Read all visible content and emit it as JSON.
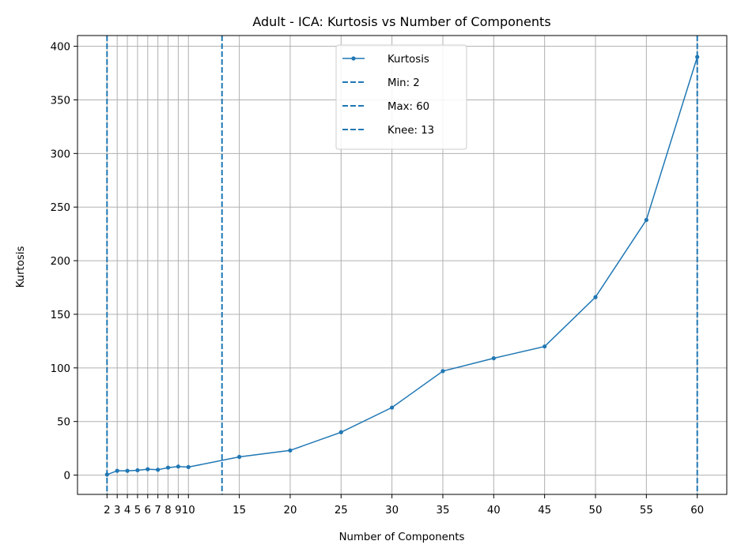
{
  "chart_data": {
    "type": "line",
    "title": "Adult - ICA: Kurtosis vs Number of Components",
    "xlabel": "Number of Components",
    "ylabel": "Kurtosis",
    "xlim": [
      -0.9,
      62.9
    ],
    "ylim": [
      -18,
      410
    ],
    "grid": true,
    "legend_position": "top-center",
    "xticks": [
      2,
      3,
      4,
      5,
      6,
      7,
      8,
      9,
      10,
      15,
      20,
      25,
      30,
      35,
      40,
      45,
      50,
      55,
      60
    ],
    "yticks": [
      0,
      50,
      100,
      150,
      200,
      250,
      300,
      350,
      400
    ],
    "series": [
      {
        "name": "Kurtosis",
        "color": "#1f77b4",
        "marker": "dot",
        "x": [
          2,
          3,
          4,
          5,
          6,
          7,
          8,
          9,
          10,
          15,
          20,
          25,
          30,
          35,
          40,
          45,
          50,
          55,
          60
        ],
        "y": [
          0.5,
          4,
          4,
          4.5,
          5.5,
          5,
          7,
          8,
          7.5,
          17,
          23,
          40,
          63,
          97,
          109,
          120,
          166,
          238,
          390
        ]
      }
    ],
    "vlines": [
      {
        "name": "Min: 2",
        "x": 2,
        "color": "#1f77b4",
        "style": "dashed"
      },
      {
        "name": "Max: 60",
        "x": 60,
        "color": "#1f77b4",
        "style": "dashed"
      },
      {
        "name": "Knee: 13",
        "x": 13.3,
        "color": "#1f77b4",
        "style": "dashed"
      }
    ]
  }
}
